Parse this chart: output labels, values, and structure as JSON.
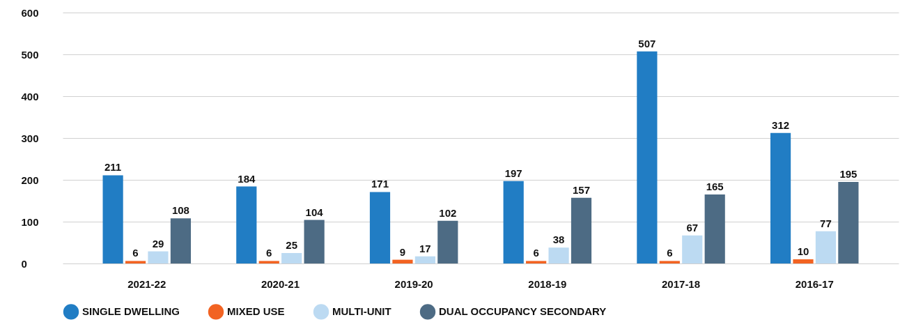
{
  "chart_data": {
    "type": "bar",
    "categories": [
      "2021-22",
      "2020-21",
      "2019-20",
      "2018-19",
      "2017-18",
      "2016-17"
    ],
    "series": [
      {
        "name": "SINGLE DWELLING",
        "color": "#217dc4",
        "values": [
          211,
          184,
          171,
          197,
          507,
          312
        ]
      },
      {
        "name": "MIXED USE",
        "color": "#f26322",
        "values": [
          6,
          6,
          9,
          6,
          6,
          10
        ]
      },
      {
        "name": "MULTI-UNIT",
        "color": "#bcdaf2",
        "values": [
          29,
          25,
          17,
          38,
          67,
          77
        ]
      },
      {
        "name": "DUAL OCCUPANCY SECONDARY",
        "color": "#4d6b84",
        "values": [
          108,
          104,
          102,
          157,
          165,
          195
        ]
      }
    ],
    "ylim": [
      0,
      600
    ],
    "yticks": [
      0,
      100,
      200,
      300,
      400,
      500,
      600
    ],
    "grid": "y",
    "legend": "bottom",
    "data_labels": true
  }
}
